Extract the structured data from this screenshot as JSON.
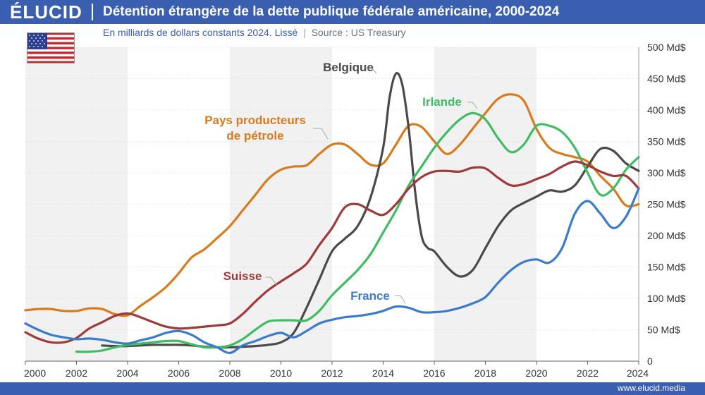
{
  "header": {
    "brand": "ÉLUCID",
    "title": "Détention étrangère de la dette publique fédérale américaine, 2000-2024",
    "subtitle": "En milliards de dollars constants 2024. Lissé",
    "separator": "|",
    "source": "Source : US Treasury"
  },
  "footer": {
    "site": "www.elucid.media"
  },
  "colors": {
    "brand": "#3a5fb0",
    "belgique": "#4a4a4a",
    "irlande": "#3ebd63",
    "petrole": "#d97a1c",
    "suisse": "#a03a3a",
    "france": "#3a7ccc"
  },
  "chart_data": {
    "type": "line",
    "title": "Détention étrangère de la dette publique fédérale américaine, 2000-2024",
    "ylim": [
      0,
      500
    ],
    "xlim": [
      2000,
      2024
    ],
    "y_ticks": [
      "0",
      "50 Md$",
      "100 Md$",
      "150 Md$",
      "200 Md$",
      "250 Md$",
      "300 Md$",
      "350 Md$",
      "400 Md$",
      "450 Md$",
      "500 Md$"
    ],
    "y_tick_values": [
      0,
      50,
      100,
      150,
      200,
      250,
      300,
      350,
      400,
      450,
      500
    ],
    "x_ticks": [
      "2000",
      "2002",
      "2004",
      "2006",
      "2008",
      "2010",
      "2012",
      "2014",
      "2016",
      "2018",
      "2020",
      "2022",
      "2024"
    ],
    "x_tick_values": [
      2000,
      2002,
      2004,
      2006,
      2008,
      2010,
      2012,
      2014,
      2016,
      2018,
      2020,
      2022,
      2024
    ],
    "shaded_bands": [
      [
        2000,
        2004
      ],
      [
        2008,
        2012
      ],
      [
        2016,
        2020
      ]
    ],
    "series": [
      {
        "key": "petrole",
        "name": "Pays producteurs de pétrole",
        "label_lines": [
          "Pays producteurs",
          "de pétrole"
        ],
        "x": [
          2000,
          2000.5,
          2001,
          2001.5,
          2002,
          2002.5,
          2003,
          2003.5,
          2004,
          2004.5,
          2005,
          2005.5,
          2006,
          2006.5,
          2007,
          2007.5,
          2008,
          2008.5,
          2009,
          2009.5,
          2010,
          2010.5,
          2011,
          2011.5,
          2012,
          2012.5,
          2013,
          2013.5,
          2014,
          2014.5,
          2015,
          2015.5,
          2016,
          2016.5,
          2017,
          2017.5,
          2018,
          2018.5,
          2019,
          2019.5,
          2020,
          2020.5,
          2021,
          2021.5,
          2022,
          2022.5,
          2023,
          2023.5,
          2024
        ],
        "values": [
          81,
          83,
          83,
          80,
          80,
          84,
          83,
          75,
          73,
          88,
          102,
          118,
          140,
          165,
          178,
          196,
          215,
          240,
          265,
          290,
          305,
          310,
          312,
          330,
          345,
          345,
          330,
          313,
          315,
          345,
          375,
          373,
          350,
          330,
          345,
          370,
          395,
          418,
          425,
          415,
          370,
          340,
          330,
          325,
          318,
          295,
          275,
          248,
          250
        ]
      },
      {
        "key": "belgique",
        "name": "Belgique",
        "label_lines": [
          "Belgique"
        ],
        "x": [
          2003,
          2003.5,
          2004,
          2004.5,
          2005,
          2005.5,
          2006,
          2006.5,
          2007,
          2007.5,
          2008,
          2008.5,
          2009,
          2009.5,
          2010,
          2010.5,
          2011,
          2011.5,
          2012,
          2012.5,
          2013,
          2013.5,
          2014,
          2014.25,
          2014.5,
          2014.75,
          2015,
          2015.25,
          2015.5,
          2015.75,
          2016,
          2016.5,
          2017,
          2017.5,
          2018,
          2018.5,
          2019,
          2019.5,
          2020,
          2020.5,
          2021,
          2021.5,
          2022,
          2022.5,
          2023,
          2023.5,
          2024
        ],
        "values": [
          25,
          24,
          24,
          25,
          26,
          26,
          26,
          25,
          23,
          22,
          22,
          23,
          24,
          26,
          30,
          45,
          85,
          130,
          175,
          195,
          215,
          260,
          340,
          420,
          458,
          440,
          370,
          270,
          200,
          180,
          175,
          150,
          135,
          145,
          180,
          215,
          240,
          252,
          262,
          272,
          270,
          280,
          310,
          338,
          335,
          315,
          303
        ]
      },
      {
        "key": "irlande",
        "name": "Irlande",
        "label_lines": [
          "Irlande"
        ],
        "x": [
          2002,
          2002.5,
          2003,
          2003.5,
          2004,
          2004.5,
          2005,
          2005.5,
          2006,
          2006.5,
          2007,
          2007.5,
          2008,
          2008.5,
          2009,
          2009.5,
          2010,
          2010.5,
          2011,
          2011.5,
          2012,
          2012.5,
          2013,
          2013.5,
          2014,
          2014.5,
          2015,
          2015.5,
          2016,
          2016.5,
          2017,
          2017.5,
          2018,
          2018.5,
          2019,
          2019.5,
          2020,
          2020.5,
          2021,
          2021.5,
          2022,
          2022.5,
          2023,
          2023.5,
          2024
        ],
        "values": [
          15,
          15,
          17,
          22,
          26,
          28,
          30,
          32,
          32,
          27,
          22,
          22,
          25,
          35,
          50,
          63,
          65,
          65,
          65,
          80,
          105,
          125,
          145,
          170,
          205,
          240,
          280,
          310,
          340,
          365,
          385,
          395,
          385,
          355,
          333,
          345,
          375,
          375,
          365,
          340,
          300,
          265,
          275,
          305,
          325
        ]
      },
      {
        "key": "suisse",
        "name": "Suisse",
        "label_lines": [
          "Suisse"
        ],
        "x": [
          2000,
          2000.5,
          2001,
          2001.5,
          2002,
          2002.5,
          2003,
          2003.5,
          2004,
          2004.5,
          2005,
          2005.5,
          2006,
          2006.5,
          2007,
          2007.5,
          2008,
          2008.5,
          2009,
          2009.5,
          2010,
          2010.5,
          2011,
          2011.5,
          2012,
          2012.5,
          2013,
          2013.5,
          2014,
          2014.5,
          2015,
          2015.5,
          2016,
          2016.5,
          2017,
          2017.5,
          2018,
          2018.5,
          2019,
          2019.5,
          2020,
          2020.5,
          2021,
          2021.5,
          2022,
          2022.5,
          2023,
          2023.5,
          2024
        ],
        "values": [
          46,
          36,
          30,
          30,
          37,
          52,
          62,
          72,
          76,
          70,
          62,
          55,
          52,
          53,
          55,
          57,
          60,
          75,
          95,
          113,
          127,
          140,
          155,
          185,
          212,
          245,
          250,
          240,
          233,
          250,
          275,
          293,
          302,
          303,
          302,
          308,
          307,
          292,
          280,
          282,
          290,
          298,
          310,
          318,
          312,
          302,
          295,
          295,
          275
        ]
      },
      {
        "key": "france",
        "name": "France",
        "label_lines": [
          "France"
        ],
        "x": [
          2000,
          2000.5,
          2001,
          2001.5,
          2002,
          2002.5,
          2003,
          2003.5,
          2004,
          2004.5,
          2005,
          2005.5,
          2006,
          2006.5,
          2007,
          2007.5,
          2008,
          2008.5,
          2009,
          2009.5,
          2010,
          2010.5,
          2011,
          2011.5,
          2012,
          2012.5,
          2013,
          2013.5,
          2014,
          2014.5,
          2015,
          2015.5,
          2016,
          2016.5,
          2017,
          2017.5,
          2018,
          2018.5,
          2019,
          2019.5,
          2020,
          2020.5,
          2021,
          2021.5,
          2022,
          2022.5,
          2023,
          2023.5,
          2024
        ],
        "values": [
          60,
          50,
          42,
          38,
          35,
          36,
          34,
          30,
          28,
          33,
          38,
          45,
          48,
          42,
          30,
          22,
          13,
          25,
          32,
          40,
          45,
          38,
          48,
          60,
          66,
          70,
          72,
          75,
          80,
          87,
          85,
          78,
          78,
          80,
          85,
          92,
          102,
          125,
          145,
          158,
          162,
          157,
          180,
          235,
          255,
          235,
          212,
          230,
          275
        ]
      }
    ]
  }
}
